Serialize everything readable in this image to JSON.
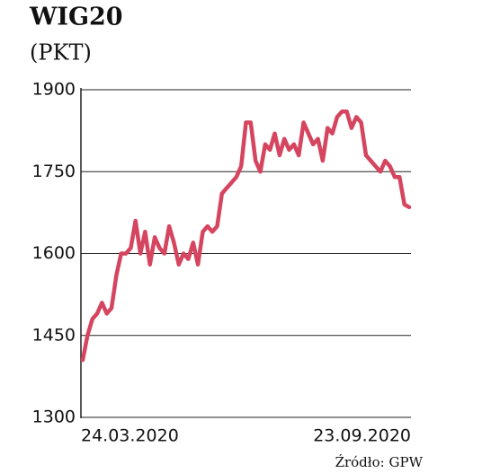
{
  "chart_data": {
    "type": "line",
    "title": "WIG20",
    "subtitle": "(PKT)",
    "source": "Źródło: GPW",
    "categories": [
      "24.03.2020",
      null,
      null,
      null,
      null,
      null,
      null,
      null,
      null,
      null,
      null,
      null,
      null,
      null,
      null,
      null,
      null,
      null,
      null,
      null,
      null,
      null,
      null,
      null,
      null,
      null,
      null,
      null,
      null,
      null,
      null,
      null,
      null,
      null,
      null,
      null,
      null,
      null,
      null,
      null,
      null,
      null,
      null,
      null,
      null,
      null,
      null,
      null,
      null,
      null,
      null,
      null,
      null,
      null,
      null,
      null,
      null,
      null,
      null,
      null,
      null,
      null,
      null,
      null,
      null,
      null,
      null,
      null,
      "23.09.2020"
    ],
    "values": [
      1405,
      1450,
      1480,
      1490,
      1510,
      1490,
      1500,
      1560,
      1600,
      1600,
      1610,
      1660,
      1600,
      1640,
      1580,
      1630,
      1610,
      1600,
      1650,
      1620,
      1580,
      1600,
      1590,
      1620,
      1580,
      1640,
      1650,
      1640,
      1650,
      1710,
      1720,
      1730,
      1740,
      1760,
      1840,
      1840,
      1770,
      1750,
      1800,
      1790,
      1820,
      1780,
      1810,
      1790,
      1800,
      1780,
      1840,
      1820,
      1800,
      1810,
      1770,
      1830,
      1820,
      1850,
      1860,
      1860,
      1830,
      1850,
      1840,
      1780,
      1770,
      1760,
      1750,
      1770,
      1760,
      1740,
      1740,
      1690,
      1685
    ],
    "color": "#d6455f",
    "ylim": [
      1300,
      1900
    ],
    "yticks": [
      1300,
      1450,
      1600,
      1750,
      1900
    ],
    "grid": true
  }
}
